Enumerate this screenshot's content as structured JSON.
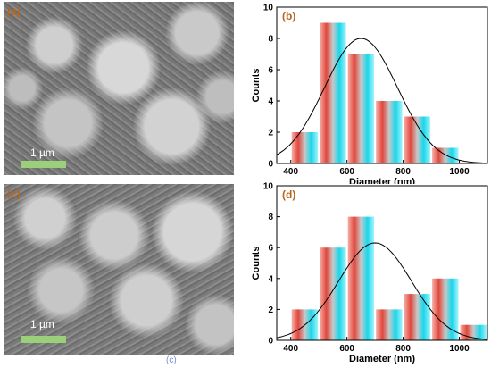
{
  "panels": {
    "a": {
      "label": "(a)",
      "scale": "1 µm"
    },
    "c": {
      "label": "(c)",
      "scale": "1 µm"
    },
    "bottom_caption": "(c)"
  },
  "colors": {
    "bar_red": "#e0473c",
    "bar_cyan": "#17d8ec",
    "curve": "#000000",
    "label": "#b8651b"
  },
  "chart_data": [
    {
      "panel": "(b)",
      "type": "bar",
      "x": [
        400,
        500,
        600,
        700,
        800,
        900
      ],
      "bin_width": 100,
      "values": [
        2,
        9,
        7,
        4,
        3,
        1
      ],
      "fit": {
        "type": "gaussian",
        "peak": 8,
        "center": 650
      },
      "xlabel": "Diameter (nm)",
      "ylabel": "Counts",
      "xlim": [
        350,
        1100
      ],
      "ylim": [
        0,
        10
      ],
      "xticks": [
        400,
        600,
        800,
        1000
      ],
      "yticks": [
        0,
        2,
        4,
        6,
        8,
        10
      ]
    },
    {
      "panel": "(d)",
      "type": "bar",
      "x": [
        400,
        500,
        600,
        700,
        800,
        900,
        1000
      ],
      "bin_width": 100,
      "values": [
        2,
        6,
        8,
        2,
        3,
        4,
        1
      ],
      "fit": {
        "type": "gaussian",
        "peak": 6.3,
        "center": 700
      },
      "xlabel": "Diameter (nm)",
      "ylabel": "Counts",
      "xlim": [
        350,
        1100
      ],
      "ylim": [
        0,
        10
      ],
      "xticks": [
        400,
        600,
        800,
        1000
      ],
      "yticks": [
        0,
        2,
        4,
        6,
        8,
        10
      ]
    }
  ]
}
